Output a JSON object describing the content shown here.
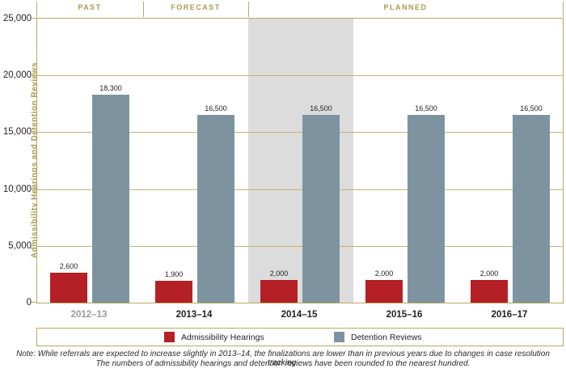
{
  "phases": [
    {
      "label": "PAST"
    },
    {
      "label": "FORECAST"
    },
    {
      "label": "PLANNED"
    }
  ],
  "chart_data": {
    "type": "bar",
    "title": "",
    "xlabel": "",
    "ylabel": "Admissibility Hearings and Detention Reviews",
    "categories": [
      "2012–13",
      "2013–14",
      "2014–15",
      "2015–16",
      "2016–17"
    ],
    "categories_muted": [
      true,
      false,
      false,
      false,
      false
    ],
    "series": [
      {
        "name": "Admissibility Hearings",
        "color": "#b42025",
        "values": [
          2600,
          1900,
          2000,
          2000,
          2000
        ],
        "value_labels": [
          "2,600",
          "1,900",
          "2,000",
          "2,000",
          "2,000"
        ]
      },
      {
        "name": "Detention Reviews",
        "color": "#7d94a0",
        "values": [
          18300,
          16500,
          16500,
          16500,
          16500
        ],
        "value_labels": [
          "18,300",
          "16,500",
          "16,500",
          "16,500",
          "16,500"
        ]
      }
    ],
    "ylim": [
      0,
      25000
    ],
    "ytick_interval": 5000,
    "ytick_labels": [
      "0",
      "5,000",
      "10,000",
      "15,000",
      "20,000",
      "25,000"
    ],
    "grid": true,
    "legend_position": "bottom",
    "highlighted_category": "2014–15"
  },
  "note": {
    "line1": "Note: While referrals are expected to increase slightly in 2013–14, the finalizations are lower than in previous years due to changes in case resolution tracking.",
    "line2": "The numbers of admissibility hearings and detention reviews have been rounded to the nearest hundred."
  },
  "colors": {
    "accent_tan_line": "#b9a95e",
    "accent_tan_text": "#a99a52",
    "admissibility_red": "#b42025",
    "detention_bluegray": "#7d94a0",
    "highlight_band_gray": "#dcdcdc",
    "muted_category_label": "#9b9b9b"
  }
}
